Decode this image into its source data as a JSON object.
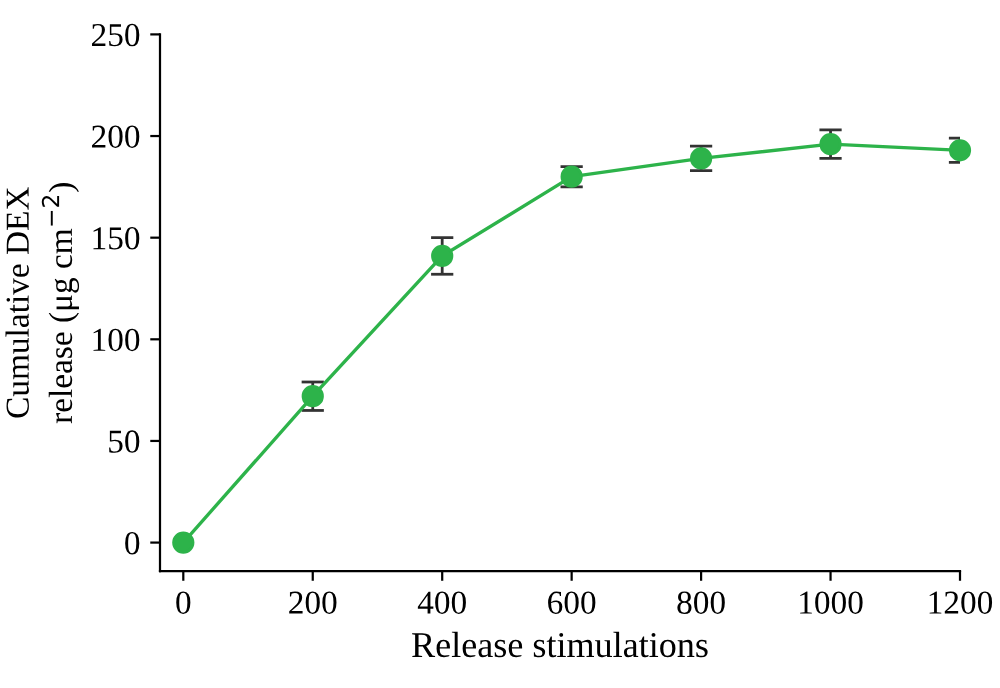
{
  "chart_data": {
    "type": "line",
    "xlabel": "Release stimulations",
    "ylabel": "Cumulative DEX\nrelease (μg cm$^{−2}$)",
    "x": [
      0,
      200,
      400,
      600,
      800,
      1000,
      1200
    ],
    "series": [
      {
        "color": "#2db34a",
        "values": [
          0,
          72,
          141,
          180,
          189,
          196,
          193
        ],
        "errors": [
          null,
          7,
          9,
          5,
          6,
          7,
          6
        ]
      }
    ],
    "xlim": [
      -36,
      1200
    ],
    "ylim": [
      -14,
      250
    ],
    "xticks": [
      0,
      200,
      400,
      600,
      800,
      1000,
      1200
    ],
    "yticks": [
      0,
      50,
      100,
      150,
      200,
      250
    ],
    "marker": "circle",
    "line_style": "solid",
    "grid": false,
    "legend": false
  }
}
